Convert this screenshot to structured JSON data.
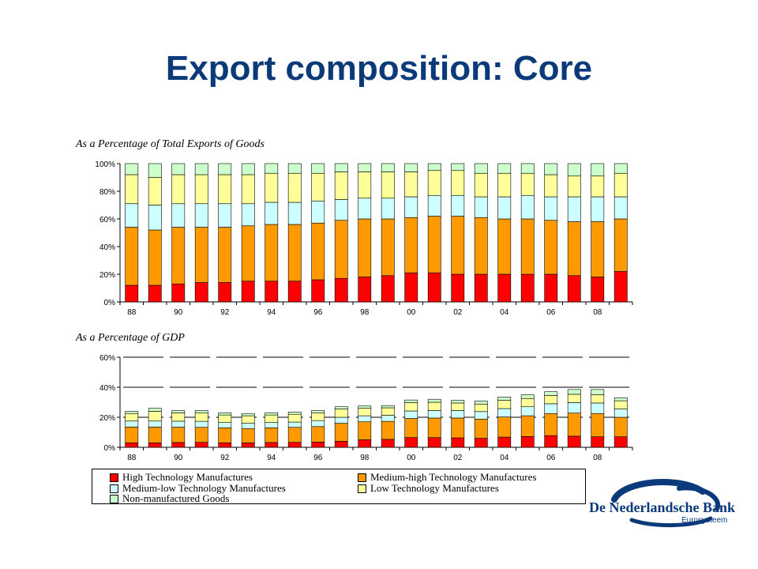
{
  "title": "Export composition: Core",
  "captions": {
    "top": "As a Percentage of Total Exports of Goods",
    "bottom": "As a Percentage of  GDP"
  },
  "logo": {
    "name": "De Nederlandsche Bank",
    "sub": "Eurosysteem"
  },
  "colors": {
    "high": "#ff0000",
    "medium_high": "#ff9900",
    "medium_low": "#ccffff",
    "low": "#ffff99",
    "non_manufactured": "#ccffcc",
    "title": "#0b3a7a"
  },
  "legend": [
    {
      "name": "High Technology Manufactures",
      "color": "#ff0000"
    },
    {
      "name": "Medium-high Technology Manufactures",
      "color": "#ff9900"
    },
    {
      "name": "Medium-low Technology Manufactures",
      "color": "#ccffff"
    },
    {
      "name": "Low Technology Manufactures",
      "color": "#ffff99"
    },
    {
      "name": "Non-manufactured Goods",
      "color": "#ccffcc"
    }
  ],
  "chart_data": [
    {
      "type": "bar",
      "stacked": true,
      "caption": "As a Percentage of Total Exports of Goods",
      "categories": [
        "88",
        "89",
        "90",
        "91",
        "92",
        "93",
        "94",
        "95",
        "96",
        "97",
        "98",
        "99",
        "00",
        "01",
        "02",
        "03",
        "04",
        "05",
        "06",
        "07",
        "08",
        "09"
      ],
      "x_tick_labels": [
        "88",
        "90",
        "92",
        "94",
        "96",
        "98",
        "00",
        "02",
        "04",
        "06",
        "08"
      ],
      "y_ticks": [
        "0%",
        "20%",
        "40%",
        "60%",
        "80%",
        "100%"
      ],
      "ylim": [
        0,
        100
      ],
      "grid": false,
      "series": [
        {
          "name": "High Technology Manufactures",
          "values": [
            12,
            12,
            13,
            14,
            14,
            15,
            15,
            15,
            16,
            17,
            18,
            19,
            21,
            21,
            20,
            20,
            20,
            20,
            20,
            19,
            18,
            22
          ]
        },
        {
          "name": "Medium-high Technology Manufactures",
          "values": [
            42,
            40,
            41,
            40,
            40,
            40,
            41,
            41,
            41,
            42,
            42,
            41,
            40,
            41,
            42,
            41,
            40,
            40,
            39,
            39,
            40,
            38
          ]
        },
        {
          "name": "Medium-low Technology Manufactures",
          "values": [
            17,
            18,
            17,
            17,
            17,
            16,
            16,
            16,
            16,
            15,
            15,
            15,
            15,
            15,
            15,
            15,
            16,
            17,
            17,
            18,
            18,
            16
          ]
        },
        {
          "name": "Low Technology Manufactures",
          "values": [
            21,
            20,
            21,
            21,
            21,
            21,
            21,
            21,
            20,
            20,
            19,
            19,
            18,
            18,
            18,
            17,
            17,
            16,
            16,
            15,
            15,
            17
          ]
        },
        {
          "name": "Non-manufactured Goods",
          "values": [
            8,
            10,
            8,
            8,
            8,
            8,
            7,
            7,
            7,
            6,
            6,
            6,
            6,
            5,
            5,
            7,
            7,
            7,
            8,
            9,
            9,
            7
          ]
        }
      ]
    },
    {
      "type": "bar",
      "stacked": true,
      "caption": "As a Percentage of  GDP",
      "categories": [
        "88",
        "89",
        "90",
        "91",
        "92",
        "93",
        "94",
        "95",
        "96",
        "97",
        "98",
        "99",
        "00",
        "01",
        "02",
        "03",
        "04",
        "05",
        "06",
        "07",
        "08",
        "09"
      ],
      "x_tick_labels": [
        "88",
        "90",
        "92",
        "94",
        "96",
        "98",
        "00",
        "02",
        "04",
        "06",
        "08"
      ],
      "y_ticks": [
        "0%",
        "20%",
        "40%",
        "60%"
      ],
      "ylim": [
        0,
        60
      ],
      "grid": true,
      "series": [
        {
          "name": "High Technology Manufactures",
          "values": [
            3.0,
            3.0,
            3.2,
            3.3,
            3.0,
            3.0,
            3.2,
            3.3,
            3.5,
            4.0,
            5.0,
            5.3,
            6.5,
            6.5,
            6.3,
            6.0,
            6.8,
            7.2,
            7.8,
            7.4,
            7.0,
            7.0
          ]
        },
        {
          "name": "Medium-high Technology Manufactures",
          "values": [
            10.5,
            10.5,
            10.2,
            10.0,
            10.0,
            9.5,
            9.8,
            10.0,
            10.3,
            12.0,
            12.0,
            12.0,
            12.7,
            13.0,
            13.2,
            12.8,
            13.4,
            13.8,
            14.7,
            15.4,
            15.5,
            13.0
          ]
        },
        {
          "name": "Medium-low Technology Manufactures",
          "values": [
            4.0,
            4.0,
            4.0,
            4.0,
            3.5,
            3.5,
            3.5,
            3.5,
            4.0,
            4.0,
            4.0,
            4.0,
            5.0,
            5.0,
            5.0,
            5.0,
            5.6,
            6.0,
            6.5,
            7.0,
            7.0,
            5.5
          ]
        },
        {
          "name": "Low Technology Manufactures",
          "values": [
            5.0,
            6.5,
            5.5,
            5.5,
            5.0,
            5.0,
            5.0,
            5.2,
            5.2,
            5.5,
            5.0,
            5.0,
            5.5,
            5.5,
            5.0,
            5.0,
            5.5,
            5.5,
            5.5,
            5.5,
            5.5,
            5.5
          ]
        },
        {
          "name": "Non-manufactured Goods",
          "values": [
            1.5,
            2.0,
            1.6,
            1.7,
            1.5,
            1.5,
            1.5,
            1.5,
            1.5,
            1.5,
            1.5,
            1.5,
            1.8,
            2.0,
            1.8,
            2.0,
            2.2,
            2.5,
            2.5,
            3.2,
            3.5,
            2.0
          ]
        }
      ]
    }
  ]
}
